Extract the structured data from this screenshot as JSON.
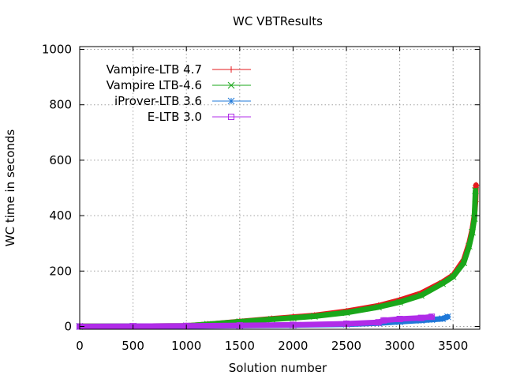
{
  "chart_data": {
    "type": "line",
    "title": "WC VBTResults",
    "xlabel": "Solution number",
    "ylabel": "WC time in seconds",
    "xlim": [
      0,
      3750
    ],
    "ylim": [
      -10,
      1010
    ],
    "xticks": [
      0,
      500,
      1000,
      1500,
      2000,
      2500,
      3000,
      3500
    ],
    "yticks": [
      0,
      200,
      400,
      600,
      800,
      1000
    ],
    "grid": true,
    "legend_position": "top-left",
    "series": [
      {
        "name": "Vampire-LTB 4.7",
        "color": "#e41a1c",
        "marker": "plus",
        "x": [
          0,
          500,
          1000,
          1200,
          1500,
          1800,
          2000,
          2200,
          2500,
          2800,
          3000,
          3200,
          3400,
          3500,
          3600,
          3650,
          3680,
          3700,
          3710,
          3715
        ],
        "y": [
          0.5,
          1,
          2,
          8,
          18,
          28,
          34,
          40,
          55,
          75,
          95,
          120,
          160,
          185,
          240,
          300,
          350,
          400,
          450,
          510
        ]
      },
      {
        "name": "Vampire LTB-4.6",
        "color": "#1aa71a",
        "marker": "x",
        "x": [
          0,
          500,
          1000,
          1200,
          1500,
          1800,
          2000,
          2200,
          2500,
          2800,
          3000,
          3200,
          3400,
          3500,
          3600,
          3650,
          3680,
          3700,
          3710
        ],
        "y": [
          0.5,
          1,
          2,
          8,
          17,
          26,
          31,
          37,
          50,
          70,
          88,
          112,
          155,
          180,
          230,
          290,
          340,
          390,
          490
        ]
      },
      {
        "name": "iProver-LTB 3.6",
        "color": "#1f78d8",
        "marker": "star",
        "x": [
          0,
          500,
          1000,
          1500,
          2000,
          2500,
          2800,
          3000,
          3200,
          3300,
          3400,
          3450
        ],
        "y": [
          0,
          0.5,
          1.5,
          3,
          5,
          8,
          12,
          17,
          22,
          25,
          28,
          35
        ]
      },
      {
        "name": "E-LTB 3.0",
        "color": "#b02ce8",
        "marker": "square",
        "x": [
          0,
          500,
          1000,
          1500,
          2000,
          2500,
          2800,
          2850,
          3000,
          3200,
          3300
        ],
        "y": [
          0,
          1,
          2,
          4,
          6,
          10,
          15,
          22,
          27,
          31,
          35
        ]
      }
    ]
  }
}
